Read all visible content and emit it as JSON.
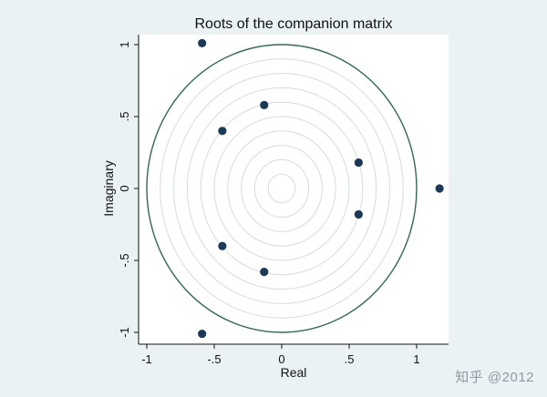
{
  "chart_data": {
    "type": "scatter",
    "title": "Roots of the companion matrix",
    "xlabel": "Real",
    "ylabel": "Imaginary",
    "xlim": [
      -1.05,
      1.2
    ],
    "ylim": [
      -1.08,
      1.08
    ],
    "x_ticks": [
      -1,
      -0.5,
      0,
      0.5,
      1
    ],
    "x_tick_labels": [
      "-1",
      "-.5",
      "0",
      ".5",
      "1"
    ],
    "y_ticks": [
      -1,
      -0.5,
      0,
      0.5,
      1
    ],
    "y_tick_labels": [
      "-1",
      "-.5",
      "0",
      ".5",
      "1"
    ],
    "unit_circle": true,
    "grid": "concentric circles",
    "points": [
      {
        "x": -0.59,
        "y": 1.01
      },
      {
        "x": -0.13,
        "y": 0.58
      },
      {
        "x": -0.44,
        "y": 0.4
      },
      {
        "x": 0.57,
        "y": 0.18
      },
      {
        "x": 1.17,
        "y": 0.0
      },
      {
        "x": 0.57,
        "y": -0.18
      },
      {
        "x": -0.44,
        "y": -0.4
      },
      {
        "x": -0.13,
        "y": -0.58
      },
      {
        "x": -0.59,
        "y": -1.01
      }
    ],
    "colors": {
      "marker": "#1a3a5c",
      "circle": "#2e6b57",
      "grid": "#d4dcdd",
      "plot_bg": "#ffffff",
      "page_bg": "#eaf2f3"
    }
  },
  "watermark": "知乎 @2012"
}
